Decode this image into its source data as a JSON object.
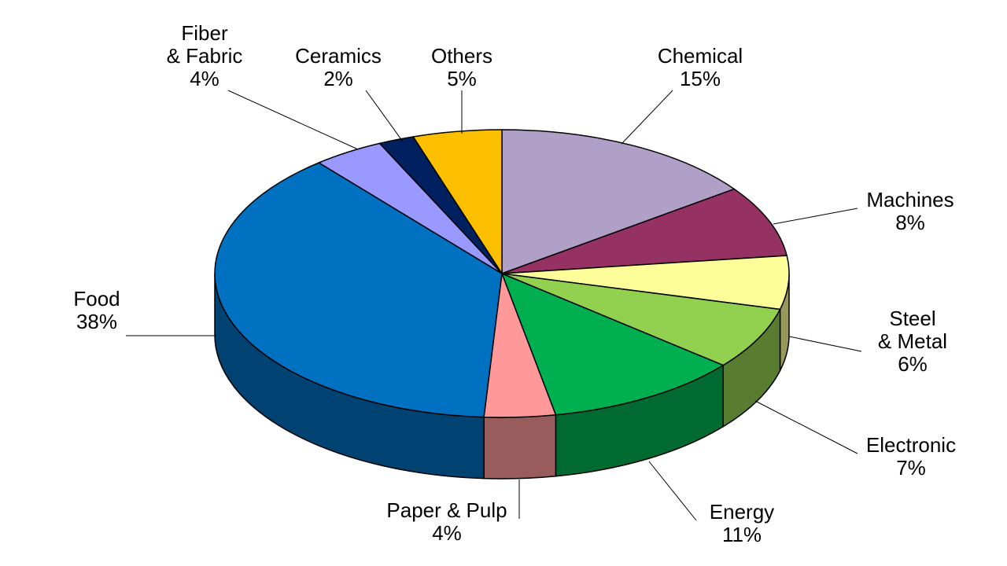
{
  "chart_data": {
    "type": "pie",
    "categories": [
      "Chemical",
      "Machines",
      "Steel\n& Metal",
      "Electronic",
      "Energy",
      "Paper & Pulp",
      "Food",
      "Fiber\n& Fabric",
      "Ceramics",
      "Others"
    ],
    "values": [
      15,
      8,
      6,
      7,
      11,
      4,
      38,
      4,
      2,
      5
    ],
    "value_labels": [
      "15%",
      "8%",
      "6%",
      "7%",
      "11%",
      "4%",
      "38%",
      "4%",
      "2%",
      "5%"
    ],
    "colors": [
      "#b09fc6",
      "#953163",
      "#fdfd99",
      "#92d050",
      "#00b050",
      "#ff9999",
      "#0070c0",
      "#9999ff",
      "#002060",
      "#fbbf00"
    ]
  }
}
